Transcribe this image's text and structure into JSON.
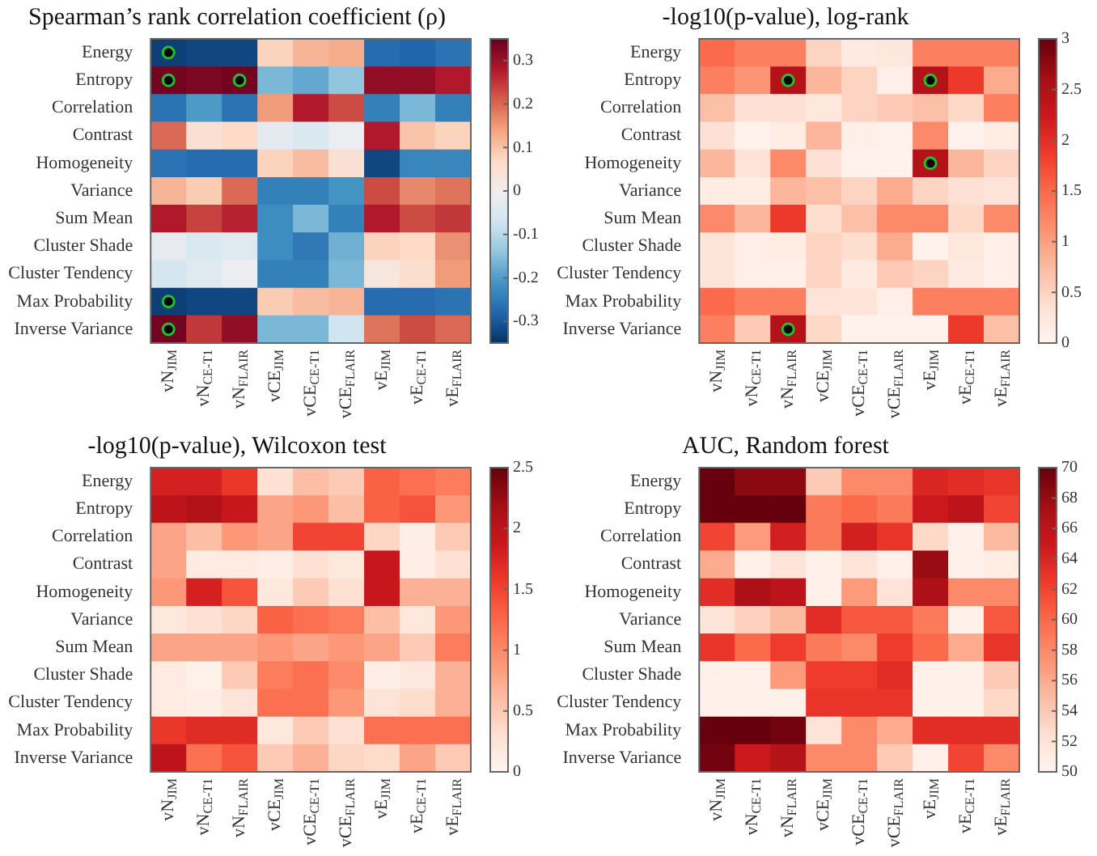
{
  "chart_data": [
    {
      "type": "heatmap",
      "title": "Spearman’s rank correlation coefficient (ρ)",
      "categories": [
        "vN$_{JIM}$",
        "vN$_{CE-T1}$",
        "vN$_{FLAIR}$",
        "vCE$_{JIM}$",
        "vCE$_{CE-T1}$",
        "vCE$_{FLAIR}$",
        "vE$_{JIM}$",
        "vE$_{CE-T1}$",
        "vE$_{FLAIR}$"
      ],
      "y_categories": [
        "Energy",
        "Entropy",
        "Correlation",
        "Contrast",
        "Homogeneity",
        "Variance",
        "Sum Mean",
        "Cluster Shade",
        "Cluster Tendency",
        "Max Probability",
        "Inverse Variance"
      ],
      "cells": [
        [
          -0.33,
          -0.32,
          -0.32,
          0.08,
          0.12,
          0.13,
          -0.27,
          -0.28,
          -0.26
        ],
        [
          0.34,
          0.33,
          0.34,
          -0.16,
          -0.18,
          -0.14,
          0.31,
          0.31,
          0.28
        ],
        [
          -0.26,
          -0.2,
          -0.26,
          0.15,
          0.28,
          0.23,
          -0.24,
          -0.16,
          -0.24
        ],
        [
          0.2,
          0.05,
          0.07,
          -0.03,
          -0.05,
          -0.01,
          0.28,
          0.1,
          0.08
        ],
        [
          -0.26,
          -0.27,
          -0.27,
          0.08,
          0.11,
          0.05,
          -0.32,
          -0.23,
          -0.23
        ],
        [
          0.12,
          0.09,
          0.2,
          -0.24,
          -0.24,
          -0.21,
          0.23,
          0.17,
          0.19
        ],
        [
          0.28,
          0.24,
          0.27,
          -0.22,
          -0.16,
          -0.24,
          0.28,
          0.23,
          0.25
        ],
        [
          -0.02,
          -0.05,
          -0.04,
          -0.22,
          -0.25,
          -0.17,
          0.08,
          0.07,
          0.16
        ],
        [
          -0.06,
          -0.04,
          -0.01,
          -0.24,
          -0.24,
          -0.16,
          0.03,
          0.06,
          0.15
        ],
        [
          -0.33,
          -0.32,
          -0.32,
          0.09,
          0.11,
          0.12,
          -0.27,
          -0.27,
          -0.26
        ],
        [
          0.34,
          0.25,
          0.31,
          -0.16,
          -0.16,
          -0.07,
          0.19,
          0.23,
          0.2
        ]
      ],
      "clim": [
        -0.35,
        0.35
      ],
      "cticks": [
        -0.3,
        -0.2,
        -0.1,
        0,
        0.1,
        0.2,
        0.3
      ],
      "marker": "circle",
      "series": [
        {
          "type": "scatter",
          "color": "#000000",
          "x": [
            "vN$_{JIM}$",
            "vN$_{JIM}$",
            "vN$_{FLAIR}$",
            "vN$_{JIM}$",
            "vN$_{JIM}$"
          ],
          "values": [
            0,
            1,
            1,
            9,
            10
          ]
        }
      ]
    },
    {
      "type": "heatmap",
      "title": "-log10(p-value), log-rank",
      "categories": [
        "vN$_{JIM}$",
        "vN$_{CE-T1}$",
        "vN$_{FLAIR}$",
        "vCE$_{JIM}$",
        "vCE$_{CE-T1}$",
        "vCE$_{FLAIR}$",
        "vE$_{JIM}$",
        "vE$_{CE-T1}$",
        "vE$_{FLAIR}$"
      ],
      "y_categories": [
        "Energy",
        "Entropy",
        "Correlation",
        "Contrast",
        "Homogeneity",
        "Variance",
        "Sum Mean",
        "Cluster Shade",
        "Cluster Tendency",
        "Max Probability",
        "Inverse Variance"
      ],
      "cells": [
        [
          1.5,
          1.3,
          1.3,
          0.5,
          0.2,
          0.25,
          1.3,
          1.3,
          1.3
        ],
        [
          1.3,
          1.1,
          2.5,
          0.8,
          0.5,
          0.1,
          2.5,
          1.9,
          0.9
        ],
        [
          0.7,
          0.35,
          0.35,
          0.25,
          0.5,
          0.6,
          0.7,
          0.45,
          1.3
        ],
        [
          0.35,
          0.05,
          0.15,
          0.8,
          0.1,
          0.05,
          1.2,
          0.05,
          0.15
        ],
        [
          0.8,
          0.3,
          1.2,
          0.35,
          0.05,
          0.05,
          2.5,
          0.8,
          0.5
        ],
        [
          0.15,
          0.15,
          0.8,
          0.7,
          0.5,
          0.9,
          0.5,
          0.35,
          0.3
        ],
        [
          1.2,
          0.8,
          1.9,
          0.4,
          0.7,
          1.2,
          1.2,
          0.45,
          1.2
        ],
        [
          0.3,
          0.1,
          0.15,
          0.5,
          0.4,
          0.9,
          0.05,
          0.25,
          0.1
        ],
        [
          0.3,
          0.1,
          0.1,
          0.5,
          0.2,
          0.6,
          0.5,
          0.2,
          0.1
        ],
        [
          1.5,
          1.3,
          1.3,
          0.3,
          0.3,
          0.1,
          1.3,
          1.3,
          1.3
        ],
        [
          1.3,
          0.6,
          2.5,
          0.45,
          0.05,
          0.05,
          0.05,
          1.9,
          0.7
        ]
      ],
      "clim": [
        0,
        3
      ],
      "cticks": [
        0,
        0.5,
        1,
        1.5,
        2,
        2.5,
        3
      ],
      "marker": "circle",
      "series": [
        {
          "type": "scatter",
          "color": "#000000",
          "x": [
            "vN$_{FLAIR}$",
            "vE$_{JIM}$",
            "vE$_{JIM}$",
            "vN$_{FLAIR}$"
          ],
          "values": [
            1,
            1,
            4,
            10
          ]
        }
      ]
    },
    {
      "type": "heatmap",
      "title": "-log10(p-value), Wilcoxon test",
      "categories": [
        "vN$_{JIM}$",
        "vN$_{CE-T1}$",
        "vN$_{FLAIR}$",
        "vCE$_{JIM}$",
        "vCE$_{CE-T1}$",
        "vCE$_{FLAIR}$",
        "vE$_{JIM}$",
        "vE$_{CE-T1}$",
        "vE$_{FLAIR}$"
      ],
      "y_categories": [
        "Energy",
        "Entropy",
        "Correlation",
        "Contrast",
        "Homogeneity",
        "Variance",
        "Sum Mean",
        "Cluster Shade",
        "Cluster Tendency",
        "Max Probability",
        "Inverse Variance"
      ],
      "cells": [
        [
          1.8,
          1.8,
          1.6,
          0.3,
          0.6,
          0.5,
          1.3,
          1.2,
          1.1
        ],
        [
          2.0,
          2.1,
          1.9,
          0.8,
          0.9,
          0.6,
          1.3,
          1.4,
          0.9
        ],
        [
          0.8,
          0.6,
          0.9,
          0.8,
          1.5,
          1.5,
          0.4,
          0.1,
          0.5
        ],
        [
          0.8,
          0.15,
          0.15,
          0.1,
          0.3,
          0.2,
          1.9,
          0.1,
          0.3
        ],
        [
          0.9,
          1.8,
          1.4,
          0.2,
          0.5,
          0.3,
          1.9,
          0.7,
          0.7
        ],
        [
          0.2,
          0.3,
          0.4,
          1.3,
          1.2,
          1.1,
          0.6,
          0.2,
          0.9
        ],
        [
          0.8,
          0.8,
          0.8,
          0.9,
          0.8,
          0.9,
          0.8,
          0.5,
          1.1
        ],
        [
          0.15,
          0.05,
          0.5,
          1.1,
          1.2,
          1.0,
          0.1,
          0.2,
          0.7
        ],
        [
          0.15,
          0.1,
          0.25,
          1.2,
          1.2,
          0.9,
          0.25,
          0.35,
          0.7
        ],
        [
          1.6,
          1.7,
          1.7,
          0.2,
          0.5,
          0.3,
          1.2,
          1.2,
          1.2
        ],
        [
          2.0,
          1.2,
          1.4,
          0.5,
          0.7,
          0.4,
          0.35,
          0.8,
          0.5
        ]
      ],
      "clim": [
        0,
        2.5
      ],
      "cticks": [
        0,
        0.5,
        1,
        1.5,
        2,
        2.5
      ]
    },
    {
      "type": "heatmap",
      "title": "AUC, Random forest",
      "categories": [
        "vN$_{JIM}$",
        "vN$_{CE-T1}$",
        "vN$_{FLAIR}$",
        "vCE$_{JIM}$",
        "vCE$_{CE-T1}$",
        "vCE$_{FLAIR}$",
        "vE$_{JIM}$",
        "vE$_{CE-T1}$",
        "vE$_{FLAIR}$"
      ],
      "y_categories": [
        "Energy",
        "Entropy",
        "Correlation",
        "Contrast",
        "Homogeneity",
        "Variance",
        "Sum Mean",
        "Cluster Shade",
        "Cluster Tendency",
        "Max Probability",
        "Inverse Variance"
      ],
      "cells": [
        [
          70,
          68.5,
          68.5,
          54,
          58,
          58,
          64,
          63.5,
          63
        ],
        [
          70,
          70,
          70,
          59,
          60,
          59,
          65,
          66,
          62
        ],
        [
          62,
          57,
          64.5,
          59,
          64.5,
          63,
          53,
          50.5,
          55
        ],
        [
          56,
          50.5,
          52,
          50.5,
          52,
          50.5,
          68,
          50.5,
          51
        ],
        [
          63.5,
          67,
          66,
          50.5,
          57,
          52,
          67,
          58,
          58
        ],
        [
          52,
          53.5,
          55,
          63.5,
          61,
          61,
          59,
          50.5,
          61
        ],
        [
          63,
          60,
          62.5,
          59,
          58,
          62.5,
          60,
          56,
          63
        ],
        [
          50.5,
          50.5,
          57,
          62.5,
          62.5,
          63.5,
          50.5,
          50.5,
          54
        ],
        [
          50.5,
          50.5,
          50.5,
          63,
          63,
          63,
          50.5,
          50.5,
          53
        ],
        [
          70,
          70,
          69.5,
          52,
          58,
          56,
          63.5,
          63.5,
          63.5
        ],
        [
          69.5,
          65,
          66.5,
          58,
          58,
          54,
          50.5,
          62,
          58
        ]
      ],
      "clim": [
        50,
        70
      ],
      "cticks": [
        50,
        52,
        54,
        56,
        58,
        60,
        62,
        64,
        66,
        68,
        70
      ]
    }
  ]
}
